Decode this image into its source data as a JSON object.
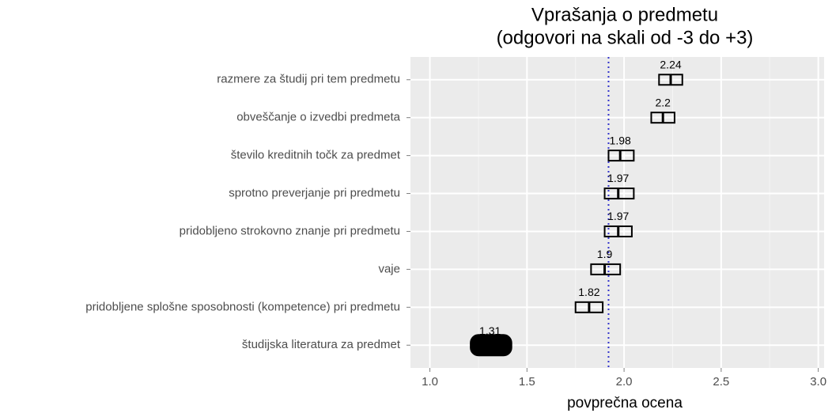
{
  "chart_data": {
    "type": "crossbar",
    "title": "Vprašanja o predmetu",
    "subtitle": "(odgovori na skali od -3 do +3)",
    "xlabel": "povprečna ocena",
    "categories": [
      "razmere za študij pri tem predmetu",
      "obveščanje o izvedbi predmeta",
      "število kreditnih točk za predmet",
      "sprotno preverjanje pri predmetu",
      "pridobljeno strokovno znanje pri predmetu",
      "vaje",
      "pridobljene splošne sposobnosti (kompetence) pri predmetu",
      "študijska literatura za predmet"
    ],
    "values": [
      2.24,
      2.2,
      1.98,
      1.97,
      1.97,
      1.9,
      1.82,
      1.31
    ],
    "lower": [
      2.18,
      2.14,
      1.92,
      1.9,
      1.9,
      1.83,
      1.75,
      1.21
    ],
    "upper": [
      2.3,
      2.26,
      2.05,
      2.05,
      2.04,
      1.98,
      1.89,
      1.42
    ],
    "fill": [
      null,
      null,
      null,
      null,
      null,
      null,
      null,
      "#000000"
    ],
    "reference_line": 1.92,
    "reference_color": "#3333cc",
    "xlim": [
      0.9,
      3.03
    ],
    "xticks": [
      {
        "value": 1,
        "label": "1.0"
      },
      {
        "value": 1.5,
        "label": "1.5"
      },
      {
        "value": 2,
        "label": "2.0"
      },
      {
        "value": 2.5,
        "label": "2.5"
      },
      {
        "value": 3,
        "label": "3.0"
      }
    ],
    "xminor": [
      1.25,
      1.75,
      2.25,
      2.75
    ],
    "grid": true
  }
}
